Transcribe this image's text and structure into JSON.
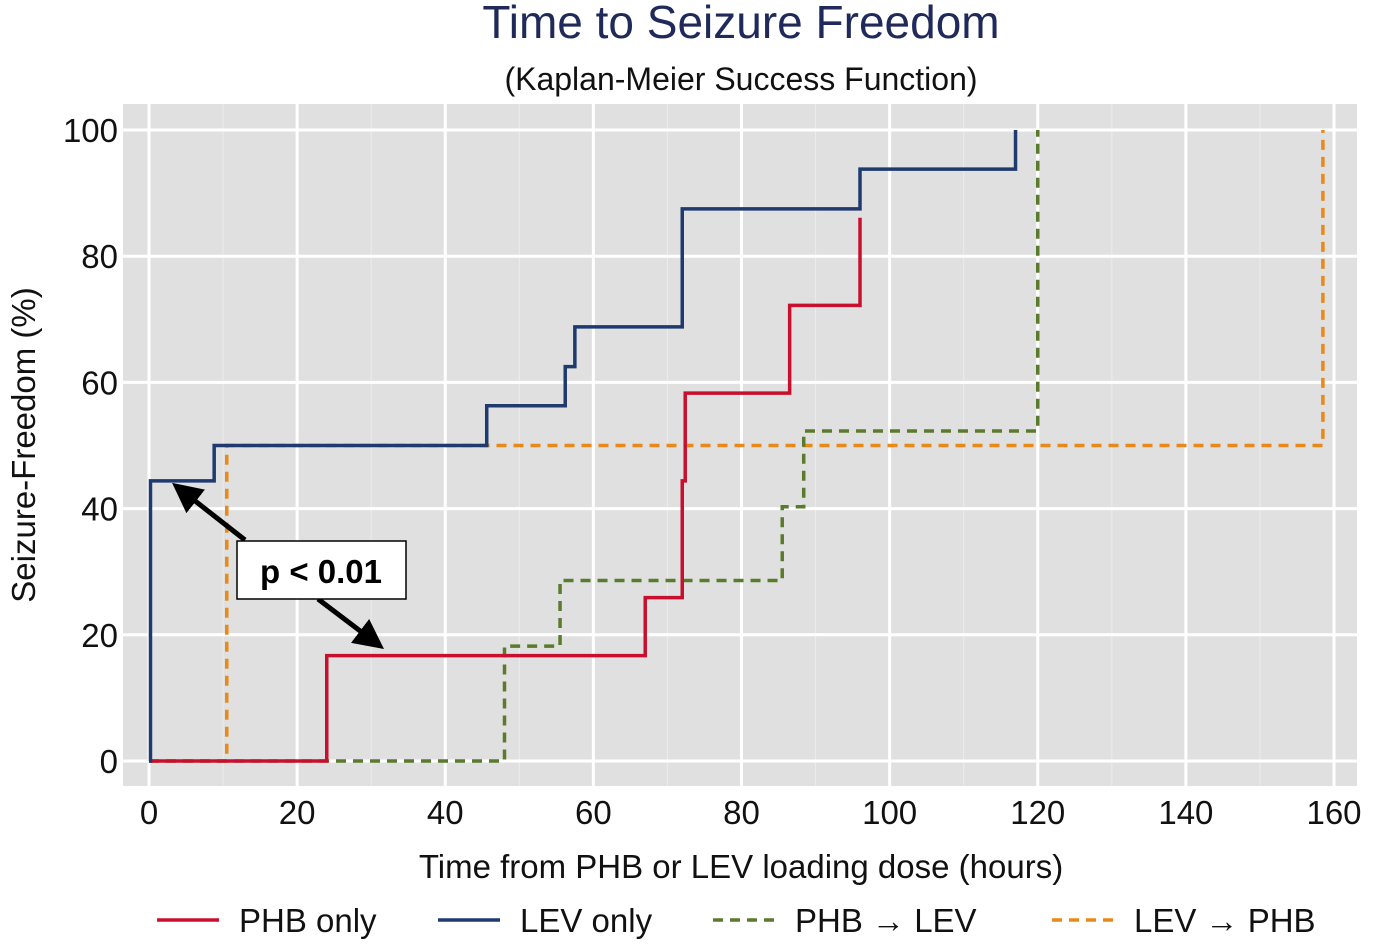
{
  "chart_data": {
    "type": "line",
    "step": true,
    "title": "Time to Seizure Freedom",
    "subtitle": "(Kaplan-Meier Success Function)",
    "xlabel": "Time from PHB or LEV loading dose (hours)",
    "ylabel": "Seizure-Freedom (%)",
    "xlim": [
      -4,
      163
    ],
    "ylim": [
      -4,
      104
    ],
    "xticks": [
      0,
      20,
      40,
      60,
      80,
      100,
      120,
      140,
      160
    ],
    "yticks": [
      0,
      20,
      40,
      60,
      80,
      100
    ],
    "grid": true,
    "legend_position": "bottom",
    "annotation": "p < 0.01",
    "series": [
      {
        "name": "PHB only",
        "color": "#c8102e",
        "dash": false,
        "x": [
          0,
          24,
          67,
          72,
          72.4,
          86.5,
          96
        ],
        "y": [
          0,
          16.7,
          25.9,
          44.4,
          58.3,
          72.2,
          86.1
        ],
        "end": 96
      },
      {
        "name": "LEV only",
        "color": "#1f3a6e",
        "dash": false,
        "x": [
          0,
          0.2,
          8.8,
          45.6,
          56.2,
          57.5,
          72,
          96,
          117
        ],
        "y": [
          0,
          44.4,
          50,
          56.3,
          62.5,
          68.8,
          87.5,
          93.8,
          100
        ],
        "end": 117
      },
      {
        "name": "PHB → LEV",
        "color": "#5a7a2e",
        "dash": true,
        "x": [
          0,
          48,
          55.5,
          85.5,
          88.4,
          120
        ],
        "y": [
          0,
          18.2,
          28.6,
          40.3,
          52.3,
          100
        ],
        "end": 120
      },
      {
        "name": "LEV → PHB",
        "color": "#e8891a",
        "dash": true,
        "x": [
          0,
          10.5,
          158.5
        ],
        "y": [
          0,
          50,
          100
        ],
        "end": 158.5
      }
    ]
  }
}
